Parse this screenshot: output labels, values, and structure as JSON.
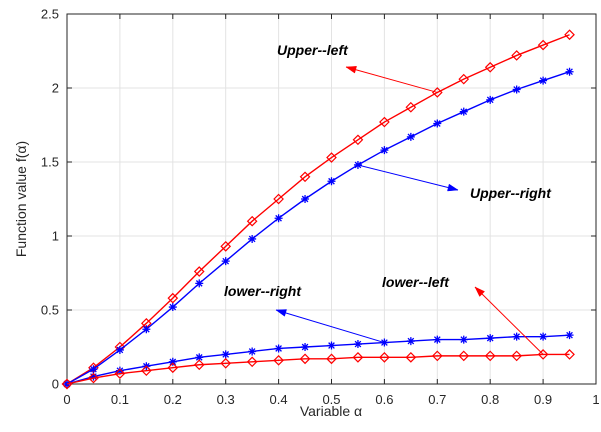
{
  "chart_data": {
    "type": "line",
    "xlabel": "Variable α",
    "ylabel": "Function value f(α)",
    "xlim": [
      0,
      1
    ],
    "ylim": [
      0,
      2.5
    ],
    "xticks": [
      "0",
      "0.1",
      "0.2",
      "0.3",
      "0.4",
      "0.5",
      "0.6",
      "0.7",
      "0.8",
      "0.9",
      "1"
    ],
    "yticks": [
      "0",
      "0.5",
      "1",
      "1.5",
      "2",
      "2.5"
    ],
    "grid": true,
    "x": [
      0,
      0.05,
      0.1,
      0.15,
      0.2,
      0.25,
      0.3,
      0.35,
      0.4,
      0.45,
      0.5,
      0.55,
      0.6,
      0.65,
      0.7,
      0.75,
      0.8,
      0.85,
      0.9,
      0.95
    ],
    "series": [
      {
        "id": "upper_left",
        "color": "#ff0000",
        "marker": "diamond",
        "values": [
          0,
          0.11,
          0.25,
          0.41,
          0.58,
          0.76,
          0.93,
          1.1,
          1.25,
          1.4,
          1.53,
          1.65,
          1.77,
          1.87,
          1.97,
          2.06,
          2.14,
          2.22,
          2.29,
          2.36
        ]
      },
      {
        "id": "upper_right",
        "color": "#0000ff",
        "marker": "asterisk",
        "values": [
          0,
          0.1,
          0.23,
          0.37,
          0.52,
          0.68,
          0.83,
          0.98,
          1.12,
          1.25,
          1.37,
          1.48,
          1.58,
          1.67,
          1.76,
          1.84,
          1.92,
          1.99,
          2.05,
          2.11
        ]
      },
      {
        "id": "lower_right",
        "color": "#0000ff",
        "marker": "asterisk",
        "values": [
          0,
          0.05,
          0.09,
          0.12,
          0.15,
          0.18,
          0.2,
          0.22,
          0.24,
          0.25,
          0.26,
          0.27,
          0.28,
          0.29,
          0.3,
          0.3,
          0.31,
          0.32,
          0.32,
          0.33
        ]
      },
      {
        "id": "lower_left",
        "color": "#ff0000",
        "marker": "diamond",
        "values": [
          0,
          0.04,
          0.07,
          0.09,
          0.11,
          0.13,
          0.14,
          0.15,
          0.16,
          0.17,
          0.17,
          0.18,
          0.18,
          0.18,
          0.19,
          0.19,
          0.19,
          0.19,
          0.2,
          0.2
        ]
      }
    ],
    "annotations": [
      {
        "text": "Upper--left",
        "series": "upper_left",
        "color": "#ff0000",
        "anchor_x": 0.7,
        "anchor_y": 1.97
      },
      {
        "text": "Upper--right",
        "series": "upper_right",
        "color": "#0000ff",
        "anchor_x": 0.55,
        "anchor_y": 1.48
      },
      {
        "text": "lower--right",
        "series": "lower_right",
        "color": "#0000ff",
        "anchor_x": 0.6,
        "anchor_y": 0.28
      },
      {
        "text": "lower--left",
        "series": "lower_left",
        "color": "#ff0000",
        "anchor_x": 0.9,
        "anchor_y": 0.2
      }
    ]
  }
}
